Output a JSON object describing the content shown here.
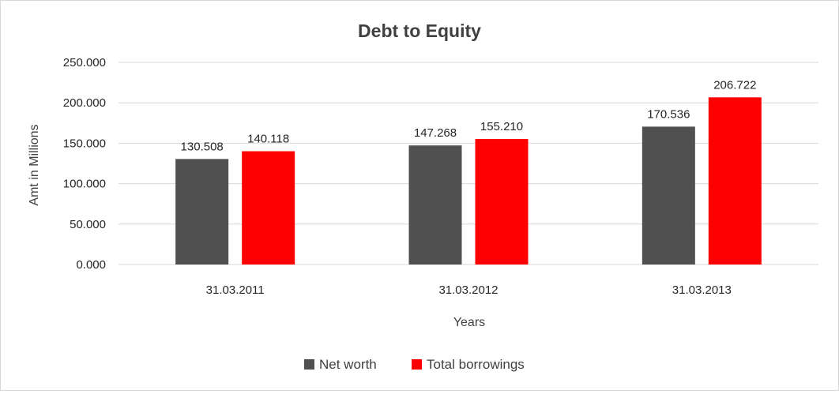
{
  "chart_data": {
    "type": "bar",
    "title": "Debt to Equity",
    "xlabel": "Years",
    "ylabel": "Amt in Millions",
    "categories": [
      "31.03.2011",
      "31.03.2012",
      "31.03.2013"
    ],
    "series": [
      {
        "name": "Net worth",
        "color": "#505050",
        "values": [
          130.508,
          147.268,
          170.536
        ],
        "labels": [
          "130.508",
          "147.268",
          "170.536"
        ]
      },
      {
        "name": "Total borrowings",
        "color": "#ff0000",
        "values": [
          140.118,
          155.21,
          206.722
        ],
        "labels": [
          "140.118",
          "155.210",
          "206.722"
        ]
      }
    ],
    "ylim": [
      0,
      250
    ],
    "yticks": [
      0,
      50,
      100,
      150,
      200,
      250
    ],
    "ytick_labels": [
      "0.000",
      "50.000",
      "100.000",
      "150.000",
      "200.000",
      "250.000"
    ],
    "grid": true,
    "legend_position": "bottom-center",
    "gridline_color": "#d9d9d9"
  }
}
